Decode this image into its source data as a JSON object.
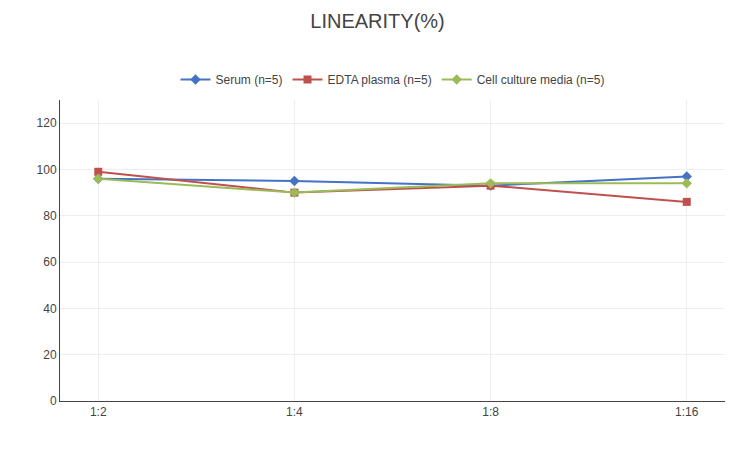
{
  "chart_data": {
    "type": "line",
    "title": "LINEARITY(%)",
    "categories": [
      "1:2",
      "1:4",
      "1:8",
      "1:16"
    ],
    "series": [
      {
        "name": "Serum (n=5)",
        "color": "#4472C4",
        "marker": "diamond",
        "values": [
          96,
          95,
          93,
          97
        ]
      },
      {
        "name": "EDTA plasma (n=5)",
        "color": "#C0504D",
        "marker": "square",
        "values": [
          99,
          90,
          93,
          86
        ]
      },
      {
        "name": "Cell culture media (n=5)",
        "color": "#9BBB59",
        "marker": "diamond",
        "values": [
          96,
          90,
          94,
          94
        ]
      }
    ],
    "ylim": [
      0,
      130
    ],
    "yticks": [
      0,
      20,
      40,
      60,
      80,
      100,
      120
    ],
    "grid": true,
    "legend": "top"
  }
}
